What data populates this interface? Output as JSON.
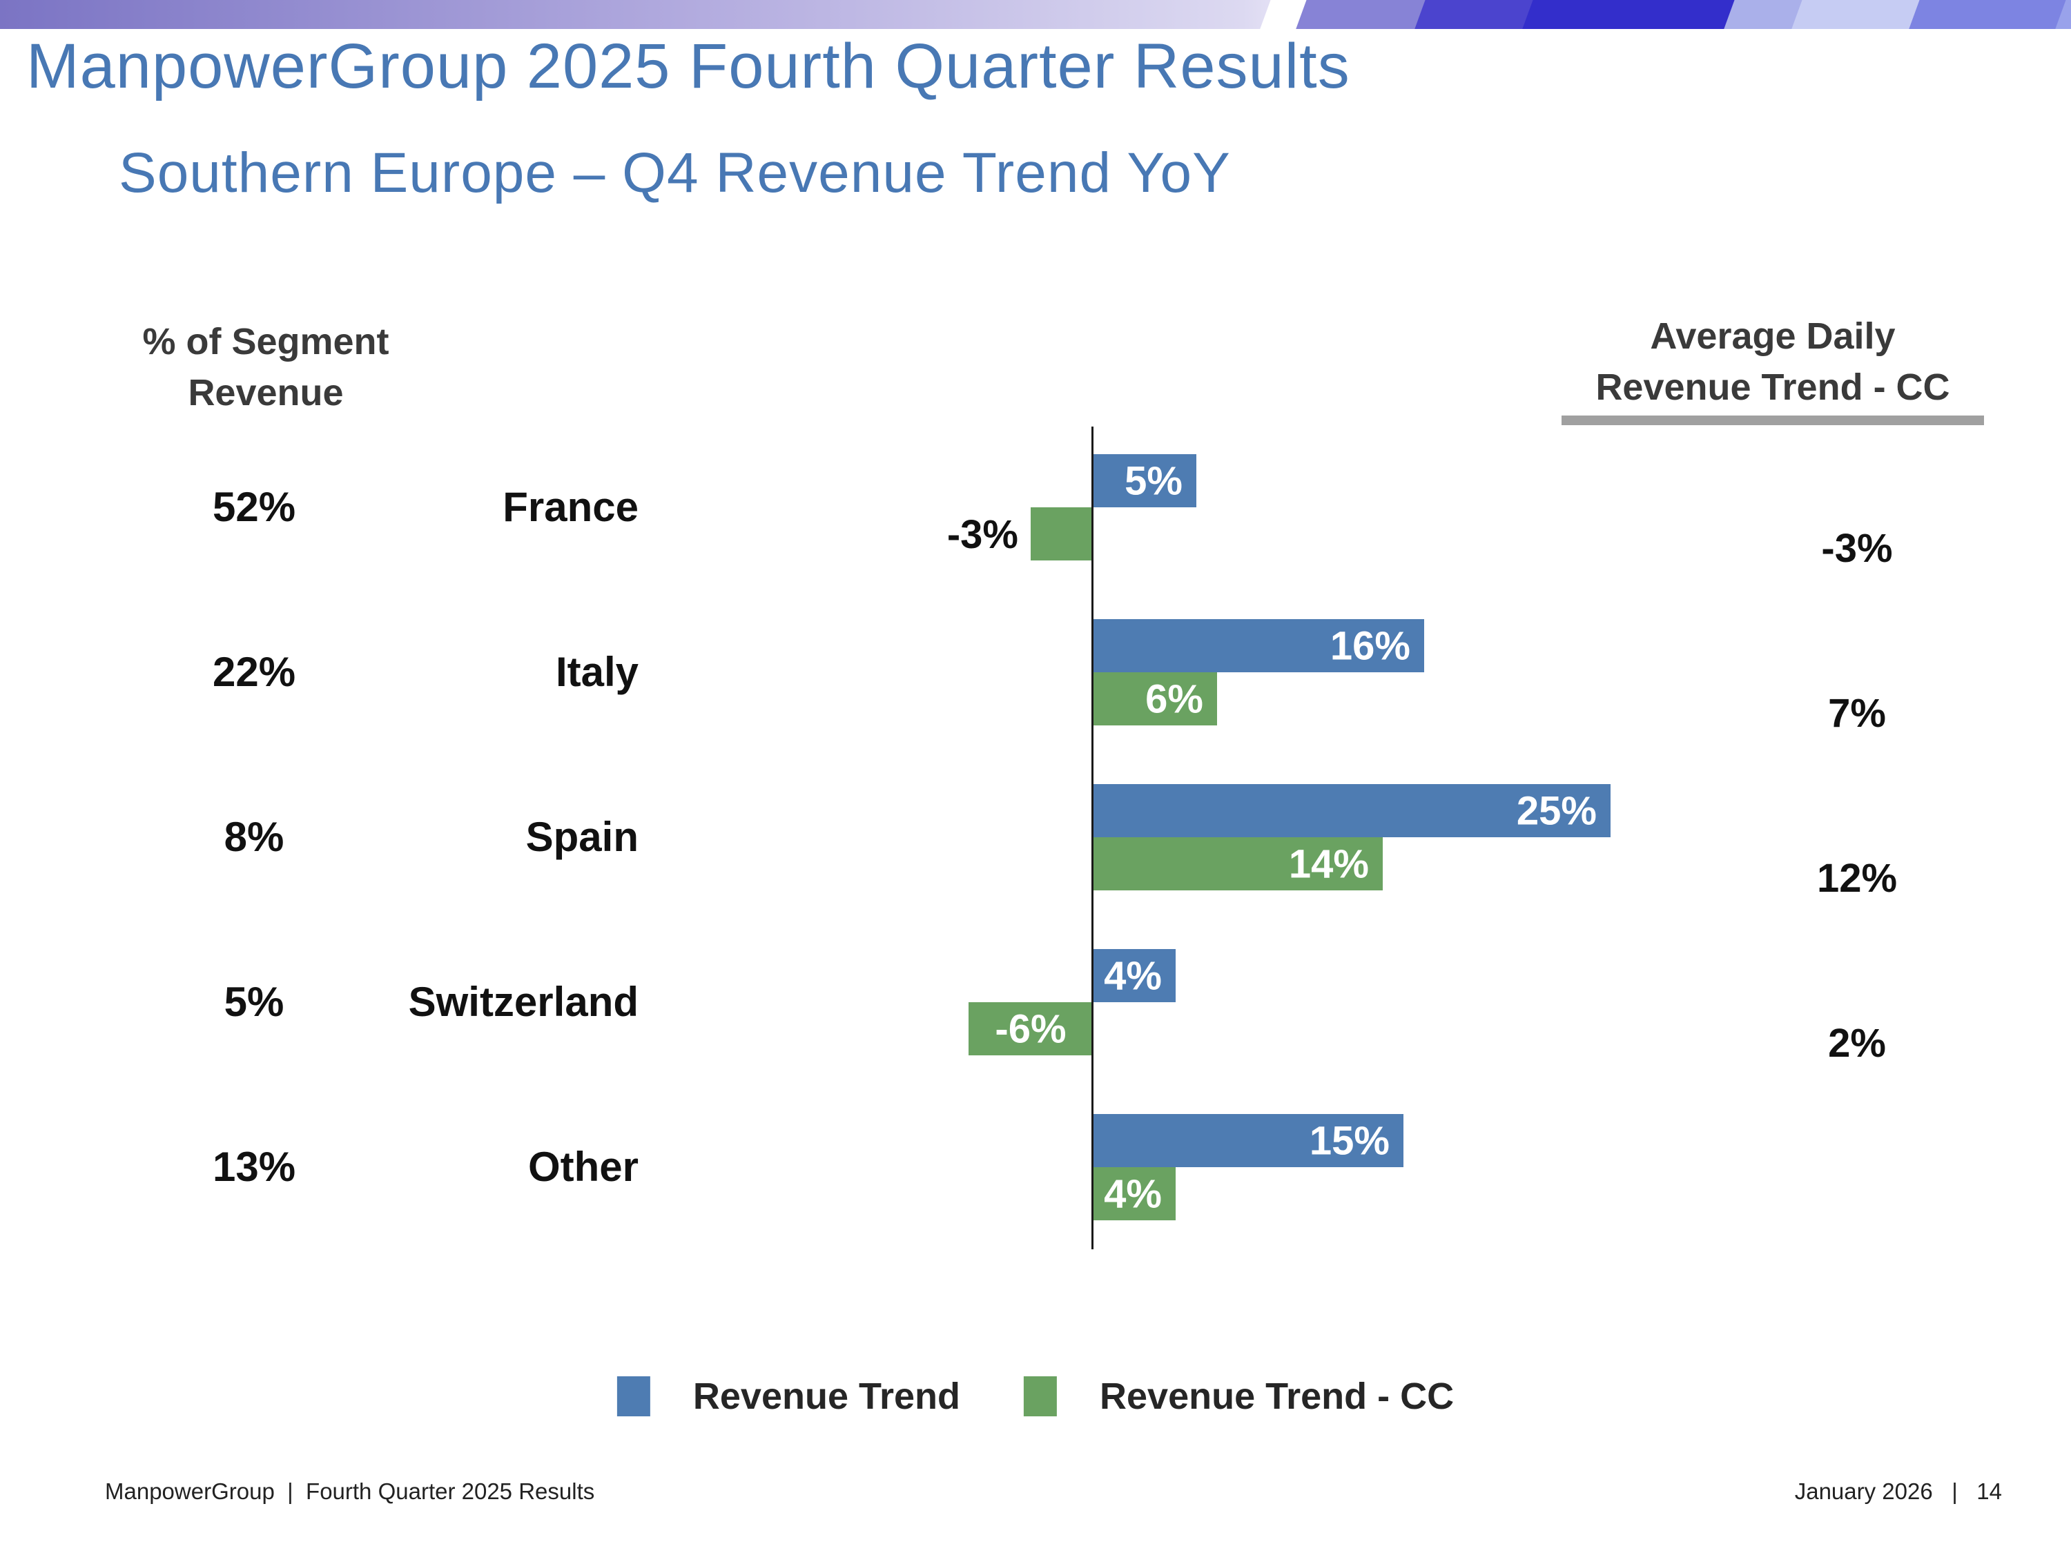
{
  "title": "ManpowerGroup 2025 Fourth Quarter Results",
  "subtitle": "Southern Europe – Q4 Revenue Trend YoY",
  "left_column_header": {
    "line1": "% of Segment",
    "line2": "Revenue"
  },
  "right_column_header": {
    "line1": "Average Daily",
    "line2": "Revenue Trend - CC"
  },
  "chart_data": {
    "type": "bar",
    "orientation": "horizontal",
    "value_unit": "%",
    "categories": [
      "France",
      "Italy",
      "Spain",
      "Switzerland",
      "Other"
    ],
    "segment_revenue_share": [
      "52%",
      "22%",
      "8%",
      "5%",
      "13%"
    ],
    "series": [
      {
        "name": "Revenue Trend",
        "color": "#4e7cb2",
        "values": [
          5,
          16,
          25,
          4,
          15
        ],
        "labels": [
          "5%",
          "16%",
          "25%",
          "4%",
          "15%"
        ]
      },
      {
        "name": "Revenue Trend - CC",
        "color": "#6aa261",
        "values": [
          -3,
          6,
          14,
          -6,
          4
        ],
        "labels": [
          "-3%",
          "6%",
          "14%",
          "-6%",
          "4%"
        ],
        "label_inside": [
          false,
          true,
          true,
          true,
          true
        ]
      }
    ],
    "average_daily_revenue_trend_cc": [
      "-3%",
      "7%",
      "12%",
      "2%",
      ""
    ],
    "axis": {
      "zero_baseline": true,
      "gridlines": false,
      "legend_position": "bottom"
    }
  },
  "legend": [
    {
      "label": "Revenue Trend",
      "color": "#4e7cb2"
    },
    {
      "label": "Revenue Trend - CC",
      "color": "#6aa261"
    }
  ],
  "footer": {
    "left": "ManpowerGroup  |  Fourth Quarter 2025 Results",
    "right": "January 2026   |   14"
  },
  "theme": {
    "title_color": "#4878b4",
    "header_text_color": "#3a3a3a",
    "label_text_color": "#111111",
    "bar_label_color": "#ffffff",
    "underline_color": "#a0a0a0",
    "axis_color": "#1a1a1a",
    "footer_color": "#222222",
    "banner": {
      "grad_start": "#7b74c4",
      "grad_mid": "#b3acdf",
      "grad_end": "#dcd9f1",
      "shape_light_blue": "#8783d6",
      "shape_blue": "#4b44ce",
      "shape_deep_blue": "#332ecb",
      "shape_lavender": "#aab0ea",
      "shape_pale": "#c6ccf3",
      "shape_violet": "#7d84e2",
      "shape_corner": "#99a2eb"
    }
  }
}
